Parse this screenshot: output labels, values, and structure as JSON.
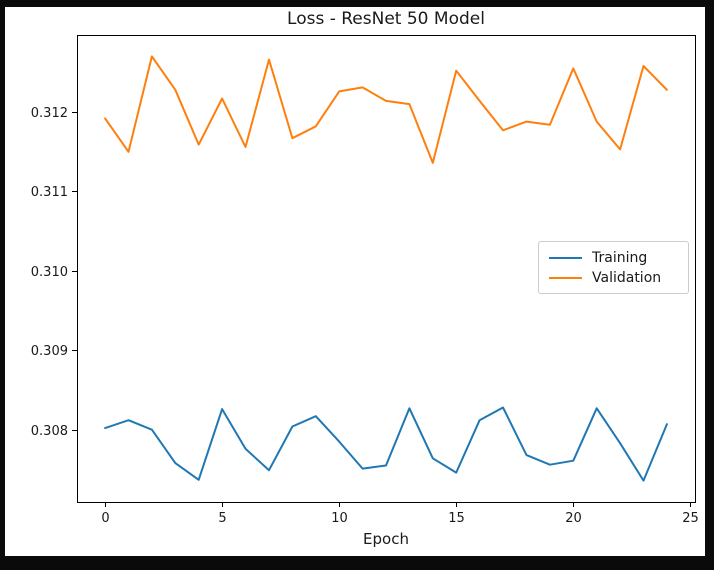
{
  "chart_data": {
    "type": "line",
    "title": "Loss - ResNet 50 Model",
    "xlabel": "Epoch",
    "ylabel": "",
    "x": [
      0,
      1,
      2,
      3,
      4,
      5,
      6,
      7,
      8,
      9,
      10,
      11,
      12,
      13,
      14,
      15,
      16,
      17,
      18,
      19,
      20,
      21,
      22,
      23,
      24
    ],
    "series": [
      {
        "name": "Training",
        "color": "#1f77b4",
        "values": [
          0.30802,
          0.30812,
          0.308,
          0.30758,
          0.30737,
          0.30826,
          0.30776,
          0.30749,
          0.30804,
          0.30817,
          0.30785,
          0.30751,
          0.30755,
          0.30827,
          0.30764,
          0.30746,
          0.30812,
          0.30828,
          0.30768,
          0.30756,
          0.30761,
          0.30827,
          0.30783,
          0.30736,
          0.30807
        ]
      },
      {
        "name": "Validation",
        "color": "#ff7f0e",
        "values": [
          0.31192,
          0.3115,
          0.3127,
          0.31228,
          0.31159,
          0.31217,
          0.31156,
          0.31266,
          0.31167,
          0.31182,
          0.31226,
          0.31231,
          0.31214,
          0.3121,
          0.31136,
          0.31252,
          0.31214,
          0.31177,
          0.31188,
          0.31184,
          0.31255,
          0.31188,
          0.31153,
          0.31258,
          0.31228
        ]
      }
    ],
    "xlim": [
      -1.2,
      25.2
    ],
    "ylim": [
      0.30709,
      0.31297
    ],
    "xticks": [
      0,
      5,
      10,
      15,
      20,
      25
    ],
    "xtick_labels": [
      "0",
      "5",
      "10",
      "15",
      "20",
      "25"
    ],
    "yticks": [
      0.308,
      0.309,
      0.31,
      0.311,
      0.312
    ],
    "ytick_labels": [
      "0.308",
      "0.309",
      "0.310",
      "0.311",
      "0.312"
    ],
    "grid": false,
    "legend_position": "center right",
    "axis_color": "#000000",
    "text_color": "#1a1a1a",
    "line_width": 2
  }
}
